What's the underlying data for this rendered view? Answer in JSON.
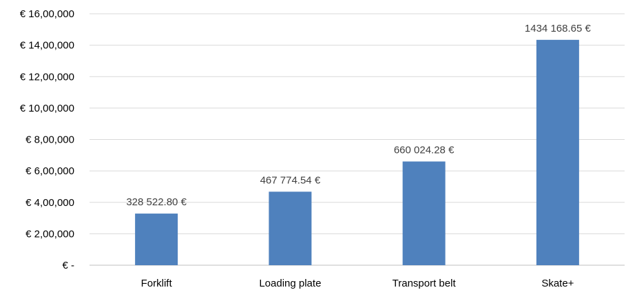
{
  "chart_data": {
    "type": "bar",
    "title": "",
    "xlabel": "",
    "ylabel": "",
    "categories": [
      "Forklift",
      "Loading plate",
      "Transport belt",
      "Skate+"
    ],
    "values": [
      328522.8,
      467774.54,
      660024.28,
      1434168.65
    ],
    "data_labels": [
      "328 522.80 €",
      "467 774.54 €",
      "660 024.28 €",
      "1434 168.65 €"
    ],
    "ylim": [
      0,
      1600000
    ],
    "y_ticks": [
      0,
      200000,
      400000,
      600000,
      800000,
      1000000,
      1200000,
      1400000,
      1600000
    ],
    "y_tick_labels": [
      "€ -",
      "€ 2,00,000",
      "€ 4,00,000",
      "€ 6,00,000",
      "€ 8,00,000",
      "€ 10,00,000",
      "€ 12,00,000",
      "€ 14,00,000",
      "€ 16,00,000"
    ],
    "grid": true,
    "legend": "none",
    "bar_color": "#4f81bd"
  }
}
